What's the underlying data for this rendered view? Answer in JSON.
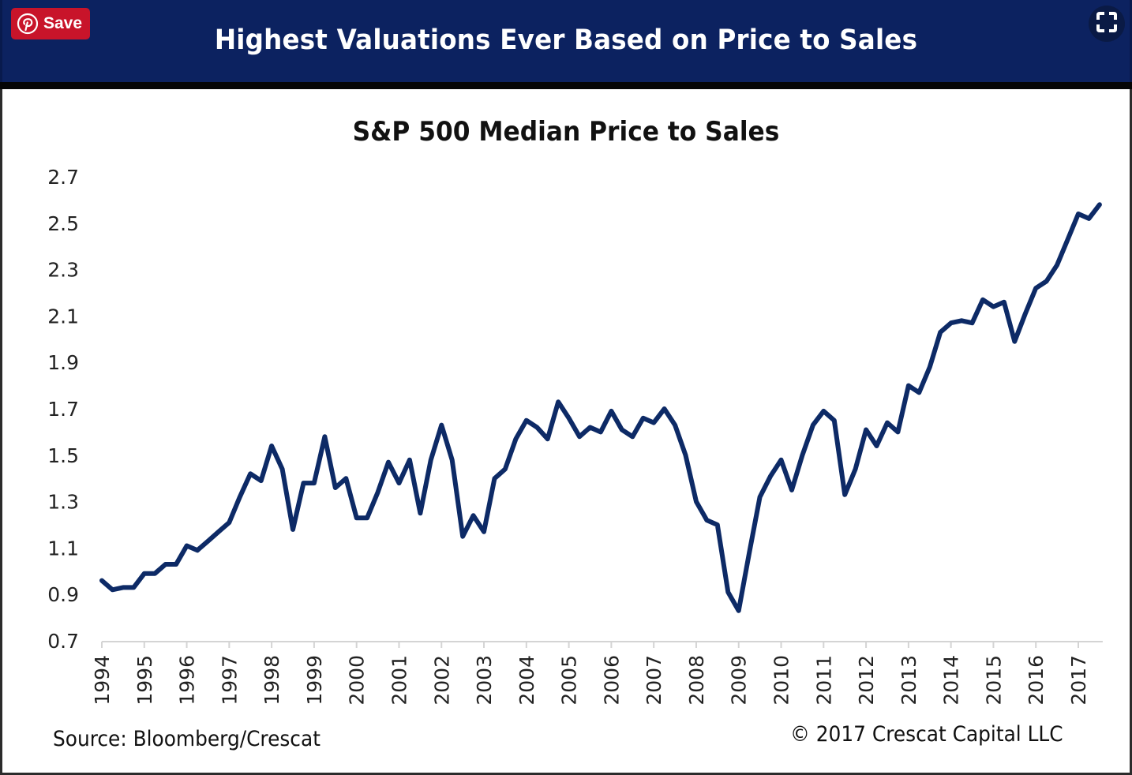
{
  "header": {
    "title": "Highest Valuations Ever Based on Price to Sales",
    "save_button": {
      "label": "Save",
      "icon": "pinterest-icon",
      "color": "#c8142a"
    },
    "expand_button": {
      "icon": "fullscreen-icon"
    },
    "background_color": "#0c2260"
  },
  "footer": {
    "source": "Source: Bloomberg/Crescat",
    "copyright": "© 2017 Crescat Capital LLC"
  },
  "chart_data": {
    "type": "line",
    "title": "S&P 500 Median Price to Sales",
    "xlabel": "",
    "ylabel": "",
    "ylim": [
      0.7,
      2.7
    ],
    "yticks": [
      "0.7",
      "0.9",
      "1.1",
      "1.3",
      "1.5",
      "1.7",
      "1.9",
      "2.1",
      "2.3",
      "2.5",
      "2.7"
    ],
    "xticks": [
      "1994",
      "1995",
      "1996",
      "1997",
      "1998",
      "1999",
      "2000",
      "2001",
      "2002",
      "2003",
      "2004",
      "2005",
      "2006",
      "2007",
      "2008",
      "2009",
      "2010",
      "2011",
      "2012",
      "2013",
      "2014",
      "2015",
      "2016",
      "2017"
    ],
    "x_start_year": 1994,
    "x_step": 0.25,
    "grid": false,
    "legend": "none",
    "line_color": "#0d2a66",
    "series": [
      {
        "name": "S&P 500 Median Price to Sales",
        "values": [
          0.96,
          0.92,
          0.93,
          0.93,
          0.99,
          0.99,
          1.03,
          1.03,
          1.11,
          1.09,
          1.13,
          1.17,
          1.21,
          1.32,
          1.42,
          1.39,
          1.54,
          1.44,
          1.18,
          1.38,
          1.38,
          1.58,
          1.36,
          1.4,
          1.23,
          1.23,
          1.34,
          1.47,
          1.38,
          1.48,
          1.25,
          1.48,
          1.63,
          1.48,
          1.15,
          1.24,
          1.17,
          1.4,
          1.44,
          1.57,
          1.65,
          1.62,
          1.57,
          1.73,
          1.66,
          1.58,
          1.62,
          1.6,
          1.69,
          1.61,
          1.58,
          1.66,
          1.64,
          1.7,
          1.63,
          1.5,
          1.3,
          1.22,
          1.2,
          0.91,
          0.83,
          1.08,
          1.32,
          1.41,
          1.48,
          1.35,
          1.5,
          1.63,
          1.69,
          1.65,
          1.33,
          1.44,
          1.61,
          1.54,
          1.64,
          1.6,
          1.8,
          1.77,
          1.88,
          2.03,
          2.07,
          2.08,
          2.07,
          2.17,
          2.14,
          2.16,
          1.99,
          2.11,
          2.22,
          2.25,
          2.32,
          2.43,
          2.54,
          2.52,
          2.58
        ]
      }
    ]
  }
}
